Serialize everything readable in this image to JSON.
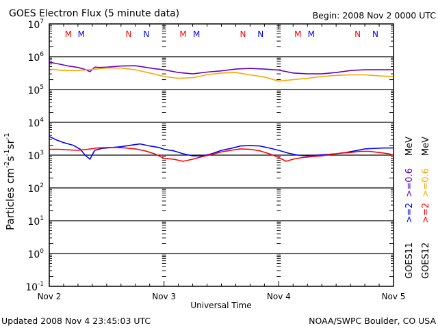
{
  "chart_data": {
    "type": "line",
    "title": "GOES Electron Flux (5 minute data)",
    "begin_label": "Begin: 2008 Nov 2 0000 UTC",
    "xlabel": "Universal Time",
    "ylabel": "Particles cm⁻²s⁻¹sr⁻¹",
    "ylabel_parts": {
      "base": "Particles cm",
      "e1": "-2",
      "s": "s",
      "e2": "-1",
      "sr": "sr",
      "e3": "-1"
    },
    "yscale": "log",
    "ylim_exp": [
      -1,
      7
    ],
    "xlim_hours": [
      0,
      72
    ],
    "x_ticks": [
      {
        "hour": 0,
        "label": "Nov 2"
      },
      {
        "hour": 24,
        "label": "Nov 3"
      },
      {
        "hour": 48,
        "label": "Nov 4"
      },
      {
        "hour": 72,
        "label": "Nov 5"
      }
    ],
    "y_ticks": [
      {
        "exp": 7,
        "base": "10",
        "sup": "7"
      },
      {
        "exp": 6,
        "base": "10",
        "sup": "6"
      },
      {
        "exp": 5,
        "base": "10",
        "sup": "5"
      },
      {
        "exp": 4,
        "base": "10",
        "sup": "4"
      },
      {
        "exp": 3,
        "base": "10",
        "sup": "3"
      },
      {
        "exp": 2,
        "base": "10",
        "sup": "2"
      },
      {
        "exp": 1,
        "base": "10",
        "sup": "1"
      },
      {
        "exp": 0,
        "base": "10",
        "sup": "0"
      },
      {
        "exp": -1,
        "base": "10",
        "sup": "-1"
      }
    ],
    "threshold": {
      "value": 1000,
      "style": "dashed"
    },
    "grid": "horizontal decade lines",
    "markers": [
      {
        "hour": 4.0,
        "label": "M",
        "color": "#ff0000"
      },
      {
        "hour": 6.7,
        "label": "M",
        "color": "#0000ff"
      },
      {
        "hour": 16.6,
        "label": "N",
        "color": "#ff0000"
      },
      {
        "hour": 20.3,
        "label": "N",
        "color": "#0000ff"
      },
      {
        "hour": 28.0,
        "label": "M",
        "color": "#ff0000"
      },
      {
        "hour": 30.8,
        "label": "M",
        "color": "#0000ff"
      },
      {
        "hour": 40.5,
        "label": "N",
        "color": "#ff0000"
      },
      {
        "hour": 44.2,
        "label": "N",
        "color": "#0000ff"
      },
      {
        "hour": 52.0,
        "label": "M",
        "color": "#ff0000"
      },
      {
        "hour": 54.8,
        "label": "M",
        "color": "#0000ff"
      },
      {
        "hour": 64.5,
        "label": "N",
        "color": "#ff0000"
      },
      {
        "hour": 68.2,
        "label": "N",
        "color": "#0000ff"
      }
    ],
    "legend": {
      "placement": "right-vertical",
      "columns": [
        {
          "satellite": "GOES11",
          "low_label": ">=2",
          "low_color": "#0000ff",
          "high_label": ">=0.6",
          "high_color": "#6600bb",
          "unit": "MeV"
        },
        {
          "satellite": "GOES12",
          "low_label": ">=2",
          "low_color": "#ff0000",
          "high_label": ">=0.6",
          "high_color": "#ffa500",
          "unit": "MeV"
        }
      ]
    },
    "series": [
      {
        "name": "GOES11 >=0.6 MeV",
        "color": "#6600bb",
        "x": [
          0,
          2,
          4,
          6,
          7.5,
          8.5,
          9.5,
          10.5,
          12,
          15,
          18,
          20,
          22,
          24,
          27,
          30,
          33,
          36,
          39,
          42,
          45,
          48,
          51,
          54,
          57,
          60,
          63,
          66,
          69,
          72
        ],
        "y": [
          680000,
          600000,
          520000,
          470000,
          410000,
          350000,
          480000,
          470000,
          480000,
          520000,
          530000,
          480000,
          430000,
          400000,
          330000,
          300000,
          340000,
          370000,
          420000,
          440000,
          420000,
          390000,
          320000,
          300000,
          300000,
          330000,
          380000,
          400000,
          400000,
          400000
        ]
      },
      {
        "name": "GOES12 >=0.6 MeV",
        "color": "#ffa500",
        "x": [
          0,
          3,
          6,
          9,
          12,
          15,
          18,
          21,
          24,
          27,
          30,
          33,
          36,
          39,
          42,
          45,
          48,
          51,
          54,
          57,
          60,
          63,
          66,
          69,
          72
        ],
        "y": [
          420000,
          380000,
          380000,
          410000,
          450000,
          450000,
          400000,
          320000,
          250000,
          220000,
          230000,
          280000,
          320000,
          330000,
          280000,
          240000,
          180000,
          200000,
          220000,
          250000,
          270000,
          280000,
          280000,
          260000,
          250000
        ]
      },
      {
        "name": "GOES11 >=2 MeV",
        "color": "#0000ff",
        "x": [
          0,
          1.5,
          3,
          5,
          6.5,
          7.5,
          8.5,
          9.5,
          11,
          13,
          15,
          17,
          19,
          21,
          23,
          24,
          26,
          28,
          30,
          32,
          34,
          36,
          38,
          40,
          42,
          44,
          46,
          48,
          50,
          52,
          54,
          56,
          58,
          60,
          62,
          64,
          66,
          68,
          70,
          72
        ],
        "y": [
          3700,
          2900,
          2400,
          2000,
          1500,
          1000,
          750,
          1400,
          1600,
          1700,
          1800,
          2000,
          2200,
          1900,
          1700,
          1500,
          1350,
          1100,
          950,
          950,
          1100,
          1400,
          1600,
          1900,
          1950,
          1900,
          1650,
          1400,
          1150,
          1000,
          950,
          1000,
          1050,
          1100,
          1200,
          1350,
          1550,
          1600,
          1650,
          1650
        ]
      },
      {
        "name": "GOES12 >=2 MeV",
        "color": "#ff0000",
        "x": [
          0,
          2,
          4,
          6,
          8,
          10,
          12,
          14,
          16,
          18,
          20,
          22,
          24,
          26,
          28,
          30,
          32,
          34,
          36,
          38,
          40,
          42,
          44,
          46,
          48,
          49.5,
          51,
          53,
          55,
          57,
          59,
          61,
          63,
          65,
          67,
          69,
          71,
          72
        ],
        "y": [
          1500,
          1500,
          1450,
          1400,
          1500,
          1650,
          1700,
          1700,
          1650,
          1550,
          1350,
          1100,
          800,
          750,
          650,
          750,
          900,
          1050,
          1250,
          1400,
          1550,
          1500,
          1350,
          1100,
          850,
          650,
          750,
          850,
          900,
          950,
          1050,
          1150,
          1200,
          1300,
          1300,
          1200,
          1100,
          1000
        ]
      }
    ]
  },
  "footer": {
    "updated": "Updated 2008 Nov  4 23:45:03 UTC",
    "credit": "NOAA/SWPC Boulder, CO USA"
  }
}
